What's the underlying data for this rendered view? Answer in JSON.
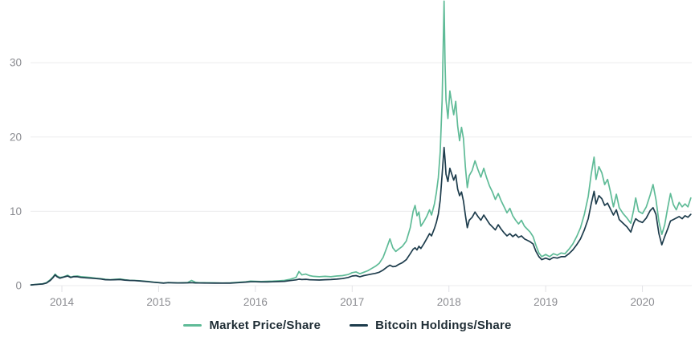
{
  "chart_data": {
    "type": "line",
    "xlabel": "",
    "ylabel": "",
    "grid": "horizontal",
    "legend_position": "bottom-center",
    "xlim": [
      2013.676,
      2020.51
    ],
    "ylim": [
      0,
      38.44
    ],
    "x_ticks": [
      2014,
      2015,
      2016,
      2017,
      2018,
      2019,
      2020
    ],
    "x_tick_labels": [
      "2014",
      "2015",
      "2016",
      "2017",
      "2018",
      "2019",
      "2020"
    ],
    "y_ticks": [
      0,
      10,
      20,
      30
    ],
    "y_tick_labels": [
      "0",
      "10",
      "20",
      "30"
    ],
    "x": [
      2013.68,
      2013.72,
      2013.76,
      2013.8,
      2013.84,
      2013.88,
      2013.91,
      2013.93,
      2013.95,
      2013.98,
      2014.02,
      2014.06,
      2014.09,
      2014.12,
      2014.16,
      2014.2,
      2014.25,
      2014.3,
      2014.35,
      2014.4,
      2014.45,
      2014.5,
      2014.55,
      2014.6,
      2014.65,
      2014.7,
      2014.75,
      2014.8,
      2014.85,
      2014.9,
      2014.95,
      2015.0,
      2015.05,
      2015.1,
      2015.15,
      2015.2,
      2015.25,
      2015.3,
      2015.34,
      2015.38,
      2015.42,
      2015.5,
      2015.58,
      2015.66,
      2015.74,
      2015.82,
      2015.9,
      2015.95,
      2016.0,
      2016.06,
      2016.12,
      2016.18,
      2016.24,
      2016.3,
      2016.36,
      2016.42,
      2016.45,
      2016.48,
      2016.52,
      2016.56,
      2016.6,
      2016.66,
      2016.72,
      2016.78,
      2016.84,
      2016.9,
      2016.96,
      2017.0,
      2017.04,
      2017.08,
      2017.12,
      2017.16,
      2017.2,
      2017.24,
      2017.28,
      2017.32,
      2017.36,
      2017.39,
      2017.42,
      2017.45,
      2017.48,
      2017.52,
      2017.56,
      2017.6,
      2017.63,
      2017.65,
      2017.67,
      2017.69,
      2017.71,
      2017.74,
      2017.77,
      2017.8,
      2017.82,
      2017.85,
      2017.87,
      2017.89,
      2017.91,
      2017.93,
      2017.95,
      2017.96,
      2017.97,
      2017.99,
      2018.01,
      2018.03,
      2018.05,
      2018.07,
      2018.09,
      2018.11,
      2018.13,
      2018.15,
      2018.17,
      2018.19,
      2018.21,
      2018.24,
      2018.27,
      2018.3,
      2018.33,
      2018.36,
      2018.39,
      2018.42,
      2018.45,
      2018.48,
      2018.51,
      2018.54,
      2018.57,
      2018.6,
      2018.63,
      2018.66,
      2018.69,
      2018.72,
      2018.75,
      2018.78,
      2018.81,
      2018.84,
      2018.87,
      2018.9,
      2018.93,
      2018.96,
      2019.0,
      2019.04,
      2019.08,
      2019.12,
      2019.16,
      2019.2,
      2019.24,
      2019.28,
      2019.32,
      2019.36,
      2019.4,
      2019.44,
      2019.47,
      2019.5,
      2019.52,
      2019.55,
      2019.58,
      2019.61,
      2019.64,
      2019.67,
      2019.7,
      2019.73,
      2019.76,
      2019.8,
      2019.84,
      2019.88,
      2019.91,
      2019.93,
      2019.96,
      2020.0,
      2020.04,
      2020.08,
      2020.11,
      2020.14,
      2020.17,
      2020.2,
      2020.23,
      2020.26,
      2020.29,
      2020.32,
      2020.35,
      2020.38,
      2020.41,
      2020.44,
      2020.47,
      2020.5
    ],
    "series": [
      {
        "name": "Market Price/Share",
        "color": "#5fbb97",
        "values": [
          0.1,
          0.15,
          0.2,
          0.25,
          0.4,
          0.8,
          1.2,
          1.55,
          1.3,
          1.1,
          1.2,
          1.4,
          1.15,
          1.25,
          1.3,
          1.2,
          1.15,
          1.1,
          1.0,
          0.95,
          0.85,
          0.8,
          0.85,
          0.9,
          0.8,
          0.72,
          0.7,
          0.66,
          0.6,
          0.55,
          0.48,
          0.42,
          0.36,
          0.42,
          0.4,
          0.38,
          0.4,
          0.42,
          0.7,
          0.45,
          0.4,
          0.4,
          0.38,
          0.36,
          0.38,
          0.44,
          0.52,
          0.6,
          0.58,
          0.56,
          0.58,
          0.6,
          0.65,
          0.7,
          0.85,
          1.1,
          1.9,
          1.45,
          1.55,
          1.35,
          1.25,
          1.2,
          1.25,
          1.2,
          1.3,
          1.35,
          1.5,
          1.75,
          1.85,
          1.6,
          1.8,
          2.0,
          2.3,
          2.6,
          3.0,
          3.8,
          5.2,
          6.3,
          5.1,
          4.6,
          4.9,
          5.3,
          6.0,
          7.8,
          10.0,
          10.8,
          9.4,
          9.9,
          8.0,
          8.6,
          9.3,
          10.2,
          9.5,
          11.0,
          12.5,
          14.5,
          18.0,
          25.0,
          38.3,
          30.0,
          25.0,
          22.5,
          26.2,
          24.5,
          23.0,
          24.8,
          21.5,
          19.5,
          21.3,
          19.8,
          16.0,
          13.2,
          14.8,
          15.5,
          16.8,
          15.6,
          14.6,
          15.8,
          14.5,
          13.4,
          12.6,
          11.6,
          12.4,
          11.4,
          10.6,
          9.8,
          10.4,
          9.4,
          8.8,
          8.3,
          8.8,
          8.0,
          7.6,
          7.2,
          6.6,
          5.4,
          4.4,
          3.9,
          4.2,
          3.9,
          4.3,
          4.1,
          4.4,
          4.3,
          4.9,
          5.6,
          6.6,
          7.8,
          9.6,
          12.0,
          15.0,
          17.3,
          14.3,
          16.0,
          15.2,
          13.6,
          14.3,
          12.6,
          10.6,
          12.3,
          10.5,
          9.7,
          9.1,
          8.4,
          10.2,
          11.8,
          10.0,
          9.7,
          10.6,
          12.2,
          13.6,
          11.6,
          8.6,
          6.9,
          8.2,
          10.4,
          12.4,
          10.9,
          10.2,
          11.2,
          10.6,
          11.0,
          10.6,
          11.8
        ]
      },
      {
        "name": "Bitcoin Holdings/Share",
        "color": "#1d3c4c",
        "values": [
          0.1,
          0.14,
          0.18,
          0.22,
          0.35,
          0.7,
          1.1,
          1.45,
          1.2,
          1.0,
          1.15,
          1.3,
          1.1,
          1.2,
          1.2,
          1.1,
          1.05,
          1.0,
          0.95,
          0.9,
          0.8,
          0.78,
          0.8,
          0.82,
          0.75,
          0.7,
          0.68,
          0.64,
          0.58,
          0.52,
          0.45,
          0.4,
          0.34,
          0.4,
          0.38,
          0.36,
          0.37,
          0.38,
          0.4,
          0.37,
          0.36,
          0.35,
          0.34,
          0.33,
          0.34,
          0.4,
          0.47,
          0.52,
          0.52,
          0.5,
          0.5,
          0.52,
          0.55,
          0.58,
          0.68,
          0.78,
          0.88,
          0.82,
          0.85,
          0.8,
          0.78,
          0.76,
          0.8,
          0.82,
          0.88,
          0.95,
          1.1,
          1.3,
          1.35,
          1.2,
          1.35,
          1.45,
          1.55,
          1.65,
          1.8,
          2.1,
          2.5,
          2.75,
          2.55,
          2.6,
          2.85,
          3.1,
          3.5,
          4.3,
          4.9,
          5.1,
          4.8,
          5.3,
          5.0,
          5.6,
          6.3,
          7.0,
          6.7,
          7.7,
          8.5,
          9.6,
          11.5,
          15.0,
          18.6,
          17.0,
          15.0,
          14.0,
          15.8,
          15.0,
          14.2,
          14.9,
          13.0,
          12.1,
          12.6,
          11.4,
          9.5,
          7.8,
          8.8,
          9.2,
          9.9,
          9.3,
          8.8,
          9.5,
          8.9,
          8.3,
          7.9,
          7.5,
          8.2,
          7.6,
          7.1,
          6.7,
          7.0,
          6.6,
          6.9,
          6.5,
          6.7,
          6.3,
          6.1,
          5.9,
          5.6,
          4.6,
          3.9,
          3.5,
          3.7,
          3.5,
          3.8,
          3.7,
          3.9,
          3.9,
          4.3,
          4.8,
          5.5,
          6.3,
          7.5,
          9.0,
          11.0,
          12.7,
          11.0,
          12.1,
          11.7,
          10.8,
          11.1,
          10.3,
          9.5,
          10.2,
          8.9,
          8.4,
          7.9,
          7.2,
          8.4,
          9.0,
          8.7,
          8.5,
          9.1,
          10.1,
          10.5,
          9.6,
          7.0,
          5.5,
          6.6,
          7.6,
          8.7,
          8.9,
          9.1,
          9.3,
          9.0,
          9.4,
          9.2,
          9.6
        ]
      }
    ]
  },
  "style": {
    "grid_color": "#ebebee",
    "tick_mark_color": "#e2e2e6",
    "tick_text_color": "#8b8c91",
    "legend_text_color": "#1e2c34",
    "background": "#ffffff"
  }
}
